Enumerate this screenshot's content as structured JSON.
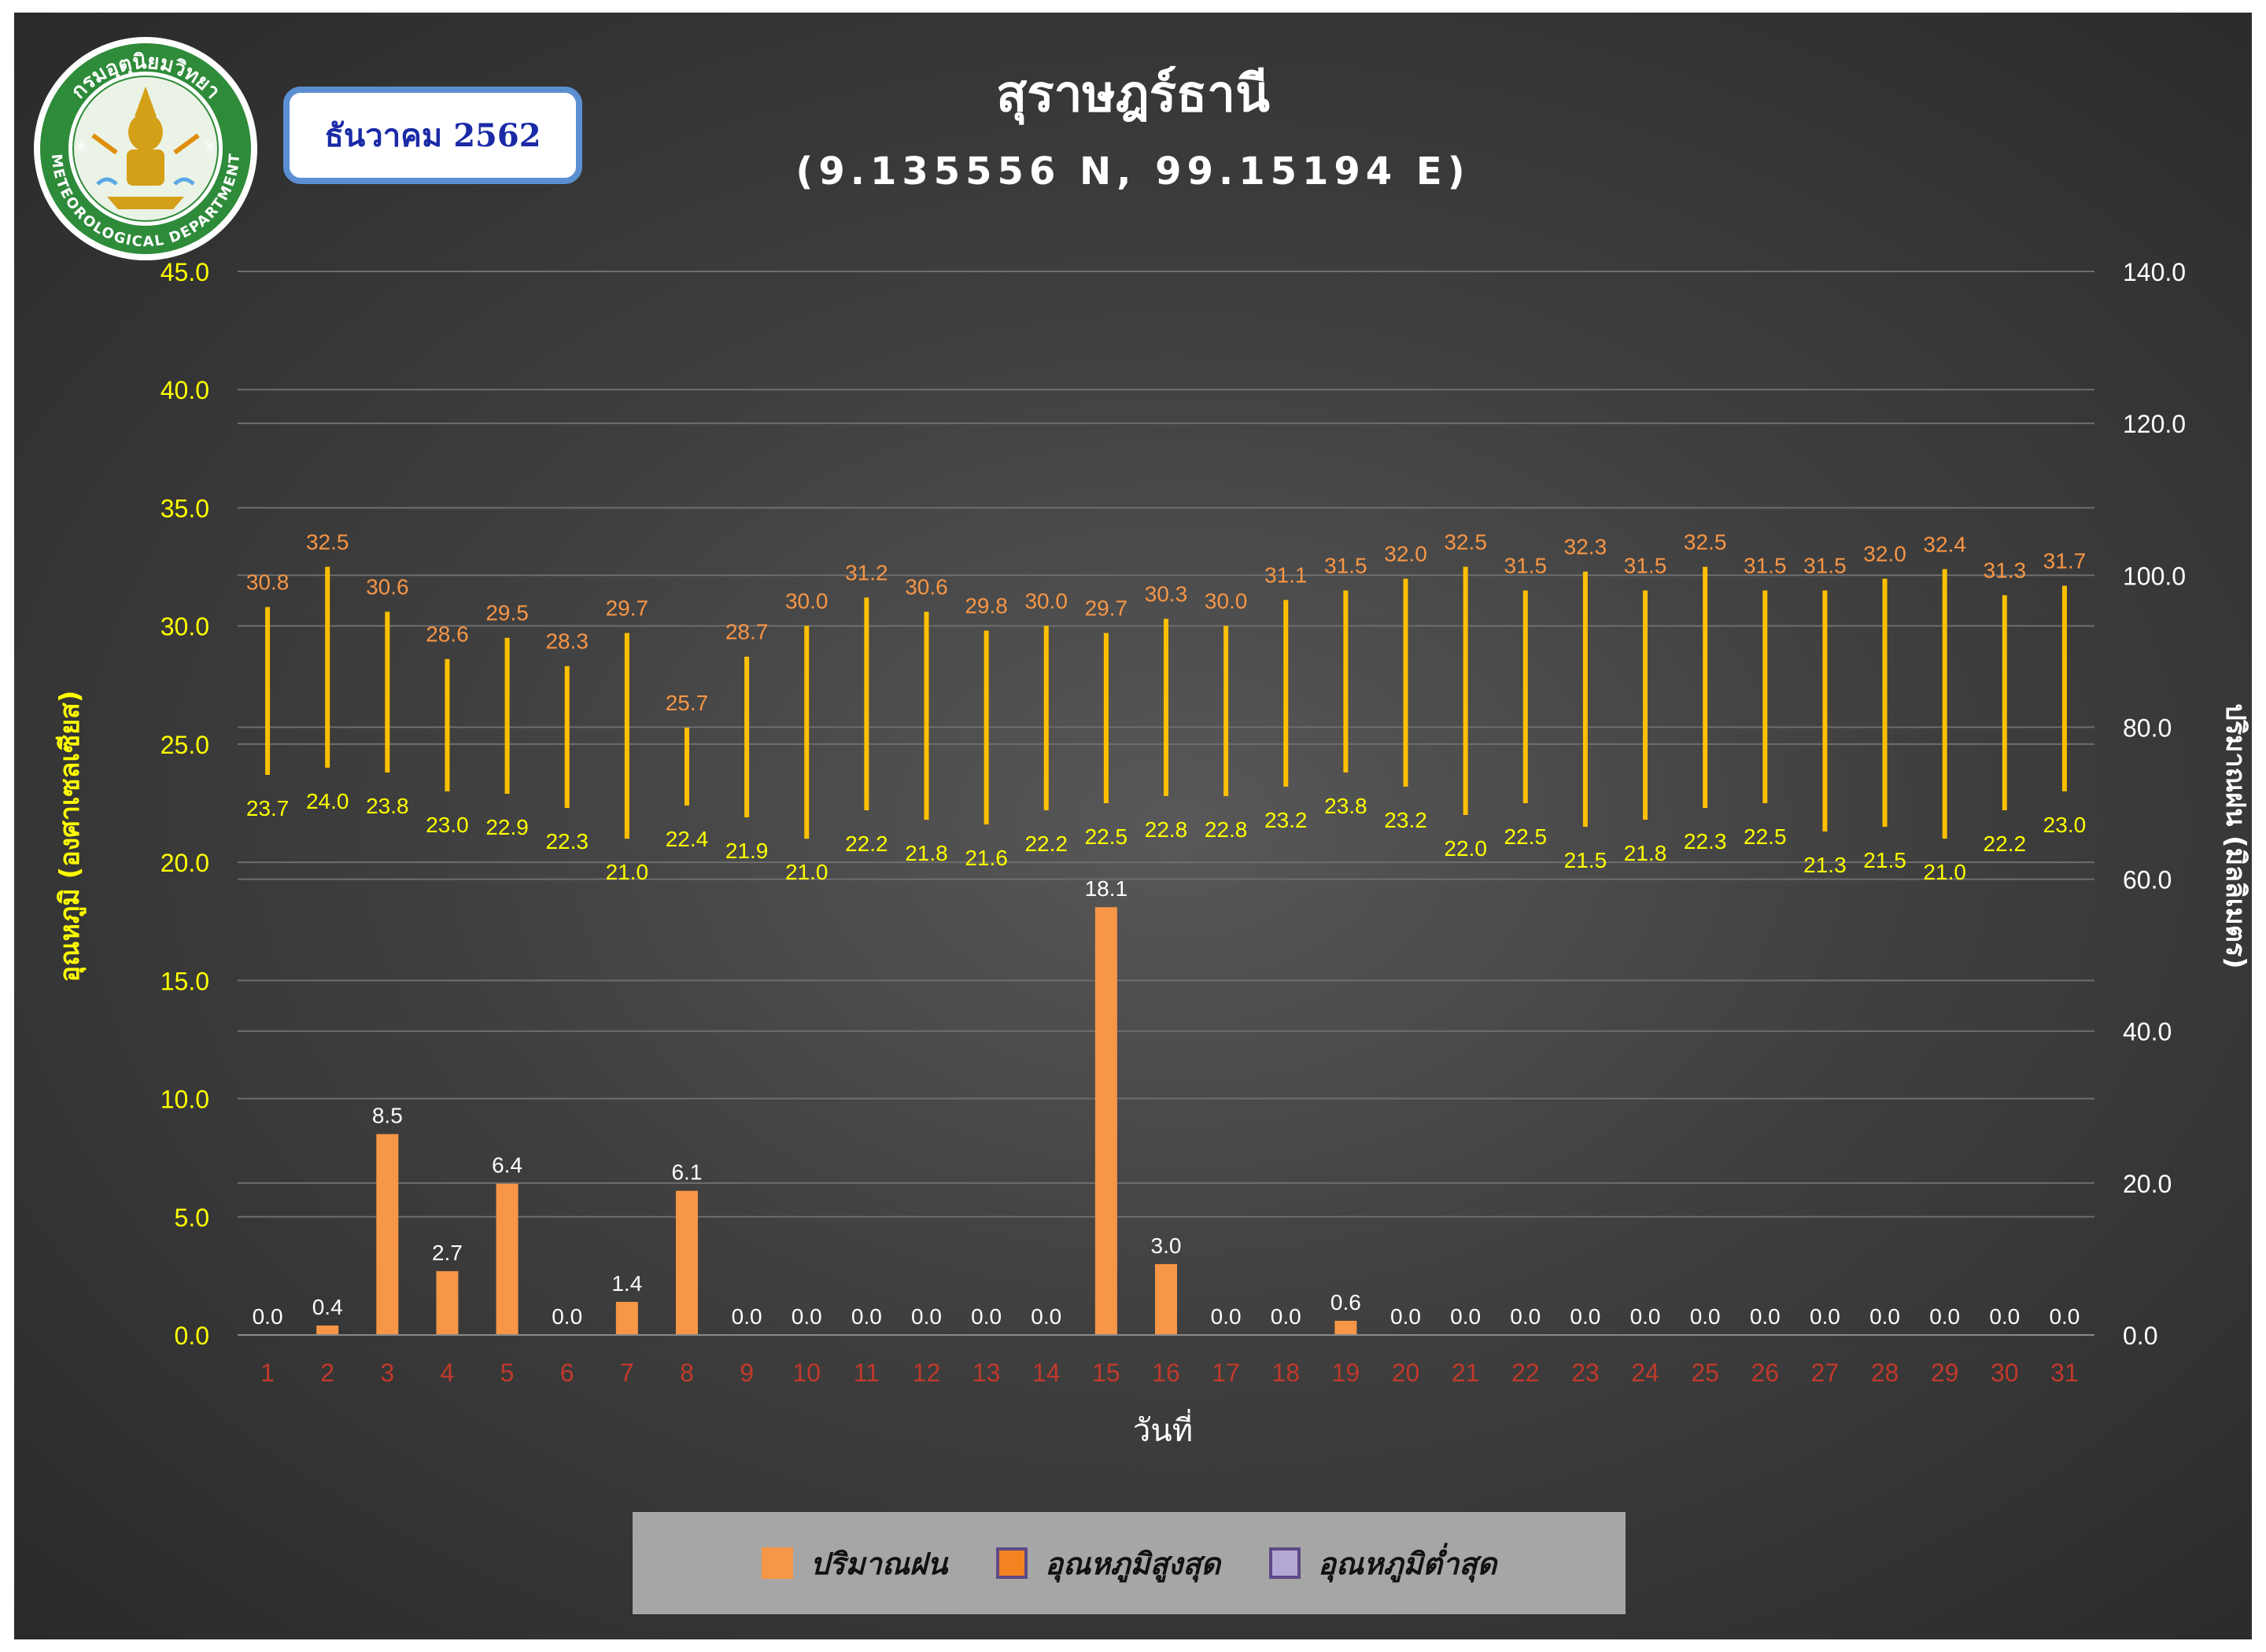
{
  "header": {
    "month_badge": "ธันวาคม 2562",
    "logo_text_top": "กรมอุตุนิยมวิทยา",
    "logo_text_bottom": "METEOROLOGICAL DEPARTMENT"
  },
  "colors": {
    "rain": "#f79646",
    "temp_max_label": "#f79646",
    "temp_min_label": "#ffff00",
    "range_bar": "#ffc000",
    "left_axis": "#ffff00",
    "right_axis": "#ffffff",
    "x_axis": "#c0392b",
    "grid": "#6e6e6e",
    "legend_bg": "#a6a6a6",
    "legend_max_swatch": "#f58220",
    "legend_min_swatch": "#b4a7d6",
    "legend_border": "#5e4a86"
  },
  "legend": {
    "items": [
      {
        "label": "ปริมาณฝน",
        "icon": "rain-swatch"
      },
      {
        "label": "อุณหภูมิสูงสุด",
        "icon": "max-temp-swatch"
      },
      {
        "label": "อุณหภูมิต่ำสุด",
        "icon": "min-temp-swatch"
      }
    ]
  },
  "chart_data": {
    "type": "bar",
    "title": "สุราษฎร์ธานี",
    "subtitle": "(9.135556 N, 99.15194 E)",
    "xlabel": "วันที่",
    "ylabel": "อุณหภูมิ (องศาเซลเซียส)",
    "y2label": "ปริมาณฝน (มิลลิเมตร)",
    "ylim": [
      0,
      45
    ],
    "y2lim": [
      0,
      140
    ],
    "yticks": [
      "0.0",
      "5.0",
      "10.0",
      "15.0",
      "20.0",
      "25.0",
      "30.0",
      "35.0",
      "40.0",
      "45.0"
    ],
    "y2ticks": [
      "0.0",
      "20.0",
      "40.0",
      "60.0",
      "80.0",
      "100.0",
      "120.0",
      "140.0"
    ],
    "categories": [
      "1",
      "2",
      "3",
      "4",
      "5",
      "6",
      "7",
      "8",
      "9",
      "10",
      "11",
      "12",
      "13",
      "14",
      "15",
      "16",
      "17",
      "18",
      "19",
      "20",
      "21",
      "22",
      "23",
      "24",
      "25",
      "26",
      "27",
      "28",
      "29",
      "30",
      "31"
    ],
    "grid": true,
    "legend_position": "bottom",
    "series": [
      {
        "name": "ปริมาณฝน",
        "type": "bar",
        "axis": "left",
        "values": [
          0.0,
          0.4,
          8.5,
          2.7,
          6.4,
          0.0,
          1.4,
          6.1,
          0.0,
          0.0,
          0.0,
          0.0,
          0.0,
          0.0,
          18.1,
          3.0,
          0.0,
          0.0,
          0.6,
          0.0,
          0.0,
          0.0,
          0.0,
          0.0,
          0.0,
          0.0,
          0.0,
          0.0,
          0.0,
          0.0,
          0.0
        ],
        "labels": [
          "0.0",
          "0.4",
          "8.5",
          "2.7",
          "6.4",
          "0.0",
          "1.4",
          "6.1",
          "0.0",
          "0.0",
          "0.0",
          "0.0",
          "0.0",
          "0.0",
          "18.1",
          "3.0",
          "0.0",
          "0.0",
          "0.6",
          "0.0",
          "0.0",
          "0.0",
          "0.0",
          "0.0",
          "0.0",
          "0.0",
          "0.0",
          "0.0",
          "0.0",
          "0.0",
          "0.0"
        ]
      },
      {
        "name": "อุณหภูมิสูงสุด",
        "type": "range-high",
        "axis": "left",
        "values": [
          30.8,
          32.5,
          30.6,
          28.6,
          29.5,
          28.3,
          29.7,
          25.7,
          28.7,
          30.0,
          31.2,
          30.6,
          29.8,
          30.0,
          29.7,
          30.3,
          30.0,
          31.1,
          31.5,
          32.0,
          32.5,
          31.5,
          32.3,
          31.5,
          32.5,
          31.5,
          31.5,
          32.0,
          32.4,
          31.3,
          31.7
        ],
        "labels": [
          "30.8",
          "32.5",
          "30.6",
          "28.6",
          "29.5",
          "28.3",
          "29.7",
          "25.7",
          "28.7",
          "30.0",
          "31.2",
          "30.6",
          "29.8",
          "30.0",
          "29.7",
          "30.3",
          "30.0",
          "31.1",
          "31.5",
          "32.0",
          "32.5",
          "31.5",
          "32.3",
          "31.5",
          "32.5",
          "31.5",
          "31.5",
          "32.0",
          "32.4",
          "31.3",
          "31.7"
        ]
      },
      {
        "name": "อุณหภูมิต่ำสุด",
        "type": "range-low",
        "axis": "left",
        "values": [
          23.7,
          24.0,
          23.8,
          23.0,
          22.9,
          22.3,
          21.0,
          22.4,
          21.9,
          21.0,
          22.2,
          21.8,
          21.6,
          22.2,
          22.5,
          22.8,
          22.8,
          23.2,
          23.8,
          23.2,
          22.0,
          22.5,
          21.5,
          21.8,
          22.3,
          22.5,
          21.3,
          21.5,
          21.0,
          22.2,
          23.0
        ],
        "labels": [
          "23.7",
          "24.0",
          "23.8",
          "23.0",
          "22.9",
          "22.3",
          "21.0",
          "22.4",
          "21.9",
          "21.0",
          "22.2",
          "21.8",
          "21.6",
          "22.2",
          "22.5",
          "22.8",
          "22.8",
          "23.2",
          "23.8",
          "23.2",
          "22.0",
          "22.5",
          "21.5",
          "21.8",
          "22.3",
          "22.5",
          "21.3",
          "21.5",
          "21.0",
          "22.2",
          "23.0"
        ]
      }
    ]
  }
}
